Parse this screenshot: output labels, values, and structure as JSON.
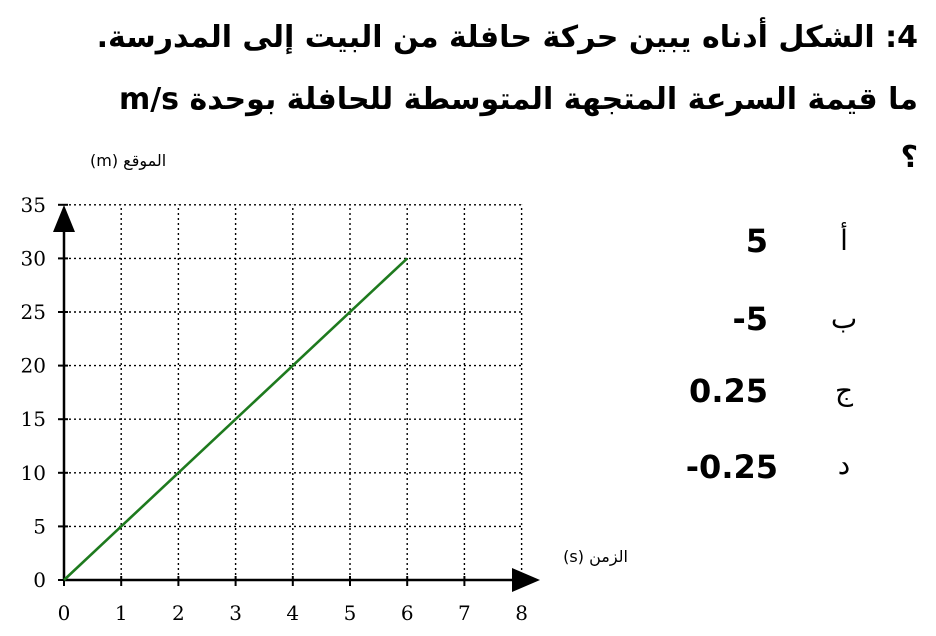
{
  "question": {
    "line1": "4: الشكل أدناه يبين حركة حافلة من البيت إلى المدرسة.",
    "line2": "ما قيمة السرعة المتجهة المتوسطة للحافلة بوحدة m/s",
    "line3": "؟"
  },
  "options": [
    {
      "letter": "أ",
      "value": "5"
    },
    {
      "letter": "ب",
      "value": "-5"
    },
    {
      "letter": "ج",
      "value": "0.25"
    },
    {
      "letter": "د",
      "value": "-0.25"
    }
  ],
  "chart_data": {
    "type": "line",
    "xlabel": "الزمن (s)",
    "ylabel": "الموقع (m)",
    "xlim": [
      0,
      8
    ],
    "ylim": [
      0,
      35
    ],
    "xticks": [
      "0",
      "1",
      "2",
      "3",
      "4",
      "5",
      "6",
      "7",
      "8"
    ],
    "yticks": [
      "0",
      "5",
      "10",
      "15",
      "20",
      "25",
      "30",
      "35"
    ],
    "grid": true,
    "series": [
      {
        "x": [
          0,
          6
        ],
        "y": [
          0,
          30
        ],
        "color": "#1e7a1e"
      }
    ]
  }
}
